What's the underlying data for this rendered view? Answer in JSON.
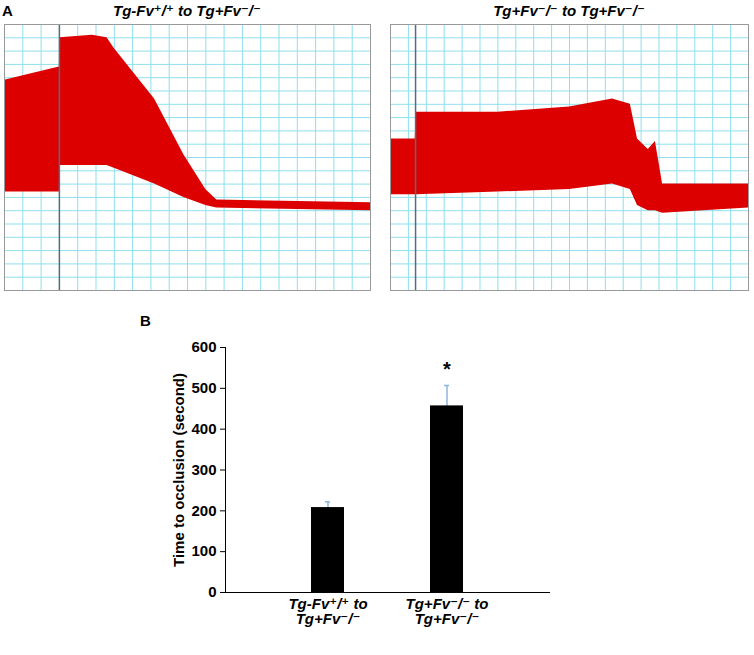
{
  "chart_data": [
    {
      "type": "area",
      "panel": "A",
      "title": "Tg-Fv⁺/⁺ to Tg+Fv⁻/⁻",
      "color": "#dd0000",
      "grid": true,
      "tick_labels": false,
      "x": [
        0,
        15,
        15.1,
        24,
        28,
        30,
        41,
        49,
        55,
        58,
        100
      ],
      "upper": [
        79,
        84,
        95,
        96,
        95,
        91,
        72,
        51,
        38,
        34,
        33
      ],
      "lower": [
        37,
        37,
        47,
        47,
        47,
        46,
        40,
        35,
        32,
        31,
        30
      ],
      "event_x": 15,
      "xlim": [
        0,
        100
      ],
      "ylim": [
        0,
        100
      ],
      "xticks": [
        0,
        5,
        10,
        15,
        20,
        25,
        30,
        35,
        40,
        45,
        50,
        55,
        60,
        65,
        70,
        75,
        80,
        85,
        90,
        95,
        100
      ],
      "yticks": [
        0,
        5,
        10,
        15,
        20,
        25,
        30,
        35,
        40,
        45,
        50,
        55,
        60,
        65,
        70,
        75,
        80,
        85,
        90,
        95,
        100
      ]
    },
    {
      "type": "area",
      "title": "Tg+Fv⁻/⁻ to Tg+Fv⁻/⁻",
      "color": "#dd0000",
      "grid": true,
      "tick_labels": false,
      "x": [
        0,
        6.9,
        7.2,
        30,
        50,
        62,
        67,
        69,
        72,
        74,
        76,
        100
      ],
      "upper": [
        57,
        57,
        67,
        67,
        69,
        72,
        70,
        57,
        53,
        56,
        40,
        40
      ],
      "lower": [
        36,
        36,
        36,
        37,
        38,
        40,
        38,
        32,
        30,
        30,
        29,
        31
      ],
      "event_x": 7,
      "xlim": [
        0,
        100
      ],
      "ylim": [
        0,
        100
      ],
      "xticks": [
        0,
        5,
        10,
        15,
        20,
        25,
        30,
        35,
        40,
        45,
        50,
        55,
        60,
        65,
        70,
        75,
        80,
        85,
        90,
        95,
        100
      ],
      "yticks": [
        0,
        5,
        10,
        15,
        20,
        25,
        30,
        35,
        40,
        45,
        50,
        55,
        60,
        65,
        70,
        75,
        80,
        85,
        90,
        95,
        100
      ]
    },
    {
      "type": "bar",
      "panel": "B",
      "color": "#000000",
      "categories": [
        "Tg-Fv⁺/⁺ to\nTg+Fv⁻/⁻",
        "Tg+Fv⁻/⁻ to\nTg+Fv⁻/⁻"
      ],
      "values": [
        208,
        457
      ],
      "errors": [
        14,
        50
      ],
      "y_label": "Time to occlusion (second)",
      "ylim": [
        0,
        600
      ],
      "yticks": [
        0,
        100,
        200,
        300,
        400,
        500,
        600
      ],
      "annotations": [
        {
          "text": "*",
          "category": "Tg+Fv⁻/⁻ to\nTg+Fv⁻/⁻"
        }
      ]
    }
  ]
}
